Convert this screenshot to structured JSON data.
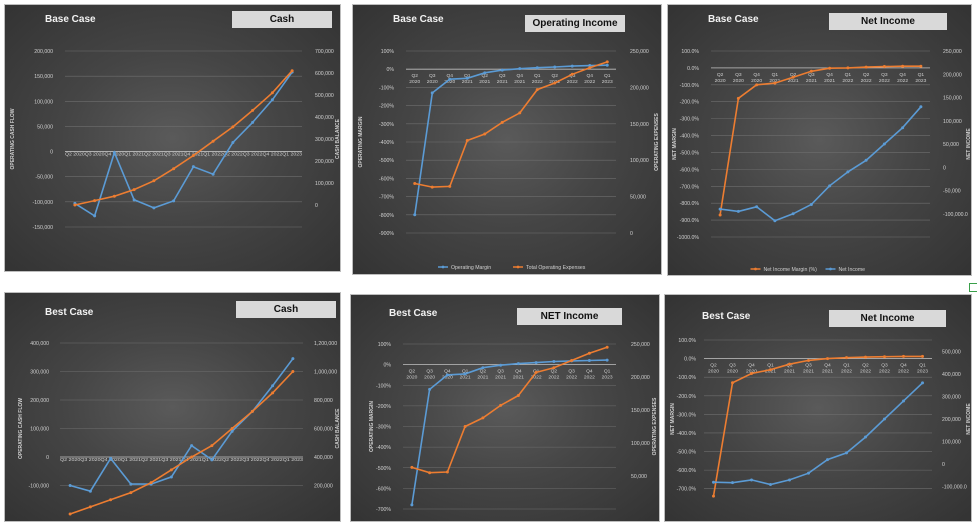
{
  "chart_data": [
    {
      "id": "p1",
      "type": "line",
      "title": "Base Case",
      "tag": "Cash",
      "categories": [
        "Q2 2020",
        "Q3 2020",
        "Q4 2020",
        "Q1 2021",
        "Q2 2021",
        "Q3 2021",
        "Q4 2021",
        "Q1 2022",
        "Q2 2022",
        "Q3 2022",
        "Q4 2022",
        "Q1 2023"
      ],
      "x_tick_text": "Q2 2020Q3 2020Q4 2020Q1 2021Q2 2021Q3 2021Q4 2021Q1 2022Q2 2022Q3 2022Q4 2022Q1 2023",
      "ylabel": "OPERATING CASH FLOW",
      "y2label": "CASH BALANCE",
      "ylim": [
        -150000,
        200000
      ],
      "y_ticks": [
        "200,000",
        "150,000",
        "100,000",
        "50,000",
        "0",
        "-50,000",
        "-100,000",
        "-150,000"
      ],
      "y2lim": [
        -100000,
        700000
      ],
      "y2_ticks": [
        "700,000",
        "600,000",
        "500,000",
        "400,000",
        "300,000",
        "200,000",
        "100,000",
        "0"
      ],
      "series": [
        {
          "name": "Operating Cash Flow",
          "axis": "left",
          "color": "#5b9bd5",
          "values": [
            -103000,
            -128000,
            -2000,
            -96000,
            -112000,
            -98000,
            -30000,
            -45000,
            18000,
            58000,
            103000,
            158000
          ]
        },
        {
          "name": "Cash Balance",
          "axis": "right",
          "color": "#ed7d31",
          "values": [
            0,
            20000,
            40000,
            70000,
            110000,
            165000,
            225000,
            290000,
            355000,
            430000,
            510000,
            610000
          ]
        }
      ]
    },
    {
      "id": "p2",
      "type": "line",
      "title": "Base Case",
      "tag": "Operating Income",
      "categories": [
        "Q2 2020",
        "Q3 2020",
        "Q4 2020",
        "Q1 2021",
        "Q2 2021",
        "Q3 2021",
        "Q4 2021",
        "Q1 2022",
        "Q2 2022",
        "Q3 2022",
        "Q4 2022",
        "Q1 2023"
      ],
      "ylabel": "OPERATING MARGIN",
      "y2label": "OPERATING EXPENSES",
      "ylim": [
        -900,
        100
      ],
      "y_ticks": [
        "100%",
        "0%",
        "-100%",
        "-200%",
        "-300%",
        "-400%",
        "-500%",
        "-600%",
        "-700%",
        "-800%",
        "-900%"
      ],
      "y2lim": [
        0,
        250000
      ],
      "y2_ticks": [
        "250,000",
        "200,000",
        "150,000",
        "100,000",
        "50,000",
        "0"
      ],
      "series": [
        {
          "name": "Operating Margin",
          "axis": "left",
          "color": "#5b9bd5",
          "values": [
            -800,
            -130,
            -55,
            -50,
            -20,
            -5,
            3,
            8,
            12,
            17,
            20,
            22
          ]
        },
        {
          "name": "Total Operating Expenses",
          "axis": "right",
          "color": "#ed7d31",
          "values": [
            68000,
            63000,
            64000,
            127000,
            136000,
            152000,
            165000,
            197000,
            206000,
            218000,
            227000,
            235000
          ]
        }
      ]
    },
    {
      "id": "p3",
      "type": "line",
      "title": "Base Case",
      "tag": "Net Income",
      "categories": [
        "Q2 2020",
        "Q3 2020",
        "Q4 2020",
        "Q1 2021",
        "Q2 2021",
        "Q3 2021",
        "Q4 2021",
        "Q1 2022",
        "Q2 2022",
        "Q3 2022",
        "Q4 2022",
        "Q1 2023"
      ],
      "ylabel": "NET MARGIN",
      "y2label": "NET INCOME",
      "ylim": [
        -1000,
        100
      ],
      "y_ticks": [
        "100.0%",
        "0.0%",
        "-100.0%",
        "-200.0%",
        "-300.0%",
        "-400.0%",
        "-500.0%",
        "-600.0%",
        "-700.0%",
        "-800.0%",
        "-900.0%",
        "-1000.0%"
      ],
      "y2lim": [
        -150000,
        250000
      ],
      "y2_ticks": [
        "250,000",
        "200,000",
        "150,000",
        "100,000",
        "50,000",
        "0",
        "-50,000",
        "-100,000.0"
      ],
      "series": [
        {
          "name": "Net Income Margin (%)",
          "axis": "left",
          "color": "#ed7d31",
          "values": [
            -870,
            -180,
            -100,
            -90,
            -55,
            -20,
            -2,
            0,
            5,
            8,
            10,
            10
          ]
        },
        {
          "name": "Net Income",
          "axis": "right",
          "color": "#5b9bd5",
          "values": [
            -90000,
            -95000,
            -85000,
            -115000,
            -100000,
            -80000,
            -40000,
            -10000,
            15000,
            50000,
            85000,
            130000
          ]
        }
      ]
    },
    {
      "id": "p4",
      "type": "line",
      "title": "Best Case",
      "tag": "Cash",
      "categories": [
        "Q2 2020",
        "Q3 2020",
        "Q4 2020",
        "Q1 2021",
        "Q2 2021",
        "Q3 2021",
        "Q4 2021",
        "Q1 2022",
        "Q2 2022",
        "Q3 2022",
        "Q4 2022",
        "Q1 2023"
      ],
      "x_tick_text": "Q2 2020Q3 2020Q4 2020Q1 2021Q2 2021Q3 2021Q4 2021Q1 2022Q2 2022Q3 2022Q4 2022Q1 2023",
      "ylabel": "OPERATING CASH FLOW",
      "y2label": "CASH BALANCE",
      "ylim": [
        -200000,
        400000
      ],
      "y_ticks": [
        "400,000",
        "300,000",
        "200,000",
        "100,000",
        "0",
        "-100,000"
      ],
      "y2lim": [
        0,
        1200000
      ],
      "y2_ticks": [
        "1,200,000",
        "1,000,000",
        "800,000",
        "600,000",
        "400,000",
        "200,000"
      ],
      "series": [
        {
          "name": "Operating Cash Flow",
          "axis": "left",
          "color": "#5b9bd5",
          "values": [
            -100000,
            -120000,
            -5000,
            -95000,
            -95000,
            -70000,
            40000,
            -10000,
            90000,
            160000,
            250000,
            345000
          ]
        },
        {
          "name": "Cash Balance",
          "axis": "right",
          "color": "#ed7d31",
          "values": [
            0,
            50000,
            100000,
            150000,
            220000,
            310000,
            400000,
            480000,
            600000,
            720000,
            850000,
            1000000
          ]
        }
      ]
    },
    {
      "id": "p5",
      "type": "line",
      "title": "Best Case",
      "tag": "NET Income",
      "categories": [
        "Q2 2020",
        "Q3 2020",
        "Q4 2020",
        "Q1 2021",
        "Q2 2021",
        "Q3 2021",
        "Q4 2021",
        "Q1 2022",
        "Q2 2022",
        "Q3 2022",
        "Q4 2022",
        "Q1 2023"
      ],
      "ylabel": "OPERATING MARGIN",
      "y2label": "OPERATING EXPENSES",
      "ylim": [
        -700,
        100
      ],
      "y_ticks": [
        "100%",
        "0%",
        "-100%",
        "-200%",
        "-300%",
        "-400%",
        "-500%",
        "-600%",
        "-700%"
      ],
      "y2lim": [
        0,
        250000
      ],
      "y2_ticks": [
        "250,000",
        "200,000",
        "150,000",
        "100,000",
        "50,000"
      ],
      "series": [
        {
          "name": "Operating Margin",
          "axis": "left",
          "color": "#5b9bd5",
          "values": [
            -680,
            -120,
            -50,
            -45,
            -15,
            -3,
            5,
            10,
            15,
            18,
            20,
            22
          ]
        },
        {
          "name": "Operating Expenses",
          "axis": "right",
          "color": "#ed7d31",
          "values": [
            63000,
            55000,
            56000,
            125000,
            138000,
            157000,
            172000,
            207000,
            214000,
            225000,
            236000,
            245000
          ]
        }
      ]
    },
    {
      "id": "p6",
      "type": "line",
      "title": "Best Case",
      "tag": "Net Income",
      "categories": [
        "Q2 2020",
        "Q3 2020",
        "Q4 2020",
        "Q1 2021",
        "Q2 2021",
        "Q3 2021",
        "Q4 2021",
        "Q1 2022",
        "Q2 2022",
        "Q3 2022",
        "Q4 2022",
        "Q1 2023"
      ],
      "ylabel": "NET MARGIN",
      "y2label": "NET INCOME",
      "ylim": [
        -750,
        100
      ],
      "y_ticks": [
        "100.0%",
        "0.0%",
        "-100.0%",
        "-200.0%",
        "-300.0%",
        "-400.0%",
        "-500.0%",
        "-600.0%",
        "-700.0%"
      ],
      "y2lim": [
        -150000,
        550000
      ],
      "y2_ticks": [
        "500,000",
        "400,000",
        "300,000",
        "200,000",
        "100,000",
        "0",
        "-100,000.0"
      ],
      "series": [
        {
          "name": "Net Margin",
          "axis": "left",
          "color": "#ed7d31",
          "values": [
            -740,
            -130,
            -80,
            -60,
            -30,
            -10,
            0,
            5,
            8,
            10,
            12,
            12
          ]
        },
        {
          "name": "Net Income",
          "axis": "right",
          "color": "#5b9bd5",
          "values": [
            -80000,
            -82000,
            -70000,
            -90000,
            -70000,
            -40000,
            20000,
            50000,
            120000,
            200000,
            280000,
            360000
          ]
        }
      ]
    }
  ]
}
